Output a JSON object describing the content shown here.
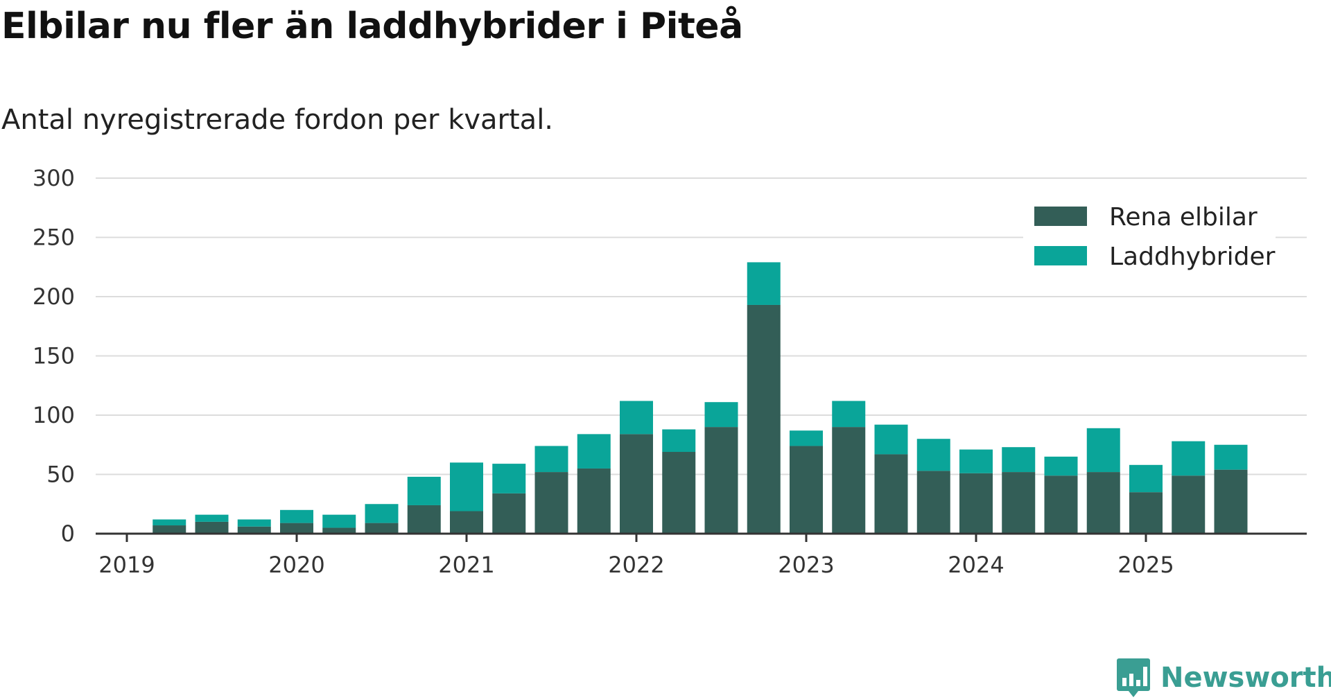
{
  "title": "Elbilar nu fler än laddhybrider i Piteå",
  "subtitle": "Antal nyregistrerade fordon per kvartal.",
  "brand": {
    "name": "Newsworthy",
    "icon": "newsworthy-logo-icon"
  },
  "chart_data": {
    "type": "bar",
    "stacked": true,
    "title": "Elbilar nu fler än laddhybrider i Piteå",
    "subtitle": "Antal nyregistrerade fordon per kvartal.",
    "xlabel": "",
    "ylabel": "",
    "ylim": [
      0,
      300
    ],
    "yticks": [
      0,
      50,
      100,
      150,
      200,
      250,
      300
    ],
    "xticks": [
      "2019",
      "2020",
      "2021",
      "2022",
      "2023",
      "2024",
      "2025"
    ],
    "grid": true,
    "legend_position": "top-right",
    "categories": [
      "2019 Q2",
      "2019 Q3",
      "2019 Q4",
      "2020 Q1",
      "2020 Q2",
      "2020 Q3",
      "2020 Q4",
      "2021 Q1",
      "2021 Q2",
      "2021 Q3",
      "2021 Q4",
      "2022 Q1",
      "2022 Q2",
      "2022 Q3",
      "2022 Q4",
      "2023 Q1",
      "2023 Q2",
      "2023 Q3",
      "2023 Q4",
      "2024 Q1",
      "2024 Q2",
      "2024 Q3",
      "2024 Q4",
      "2025 Q1",
      "2025 Q2",
      "2025 Q3"
    ],
    "series": [
      {
        "name": "Rena elbilar",
        "color": "#335e57",
        "values": [
          7,
          10,
          6,
          9,
          5,
          9,
          24,
          19,
          34,
          52,
          55,
          84,
          69,
          90,
          193,
          74,
          90,
          67,
          53,
          51,
          52,
          49,
          52,
          35,
          49,
          54
        ]
      },
      {
        "name": "Laddhybrider",
        "color": "#0aa599",
        "values": [
          5,
          6,
          6,
          11,
          11,
          16,
          24,
          41,
          25,
          22,
          29,
          28,
          19,
          21,
          36,
          13,
          22,
          25,
          27,
          20,
          21,
          16,
          37,
          23,
          29,
          21
        ]
      }
    ]
  }
}
